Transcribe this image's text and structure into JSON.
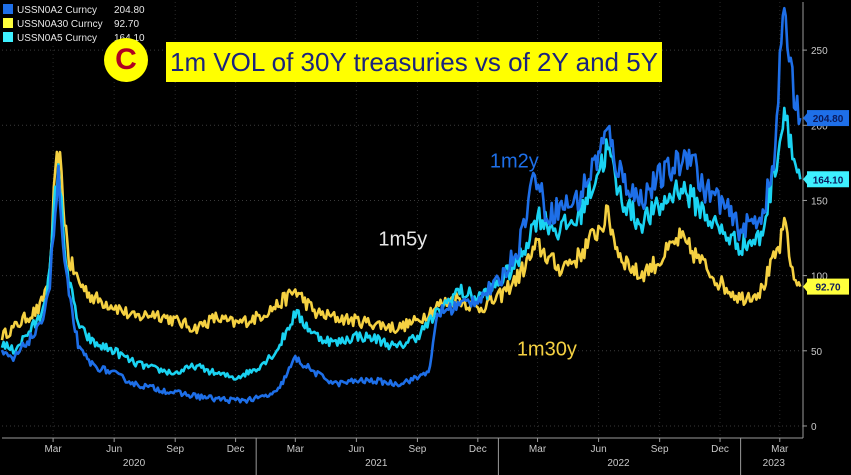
{
  "chart_data": {
    "type": "line",
    "title": "1m VOL of 30Y treasuries vs  of 2Y and 5Y",
    "panel_label": "C",
    "ylim": [
      -8,
      282
    ],
    "y_ticks": [
      0,
      50,
      100,
      150,
      200,
      250
    ],
    "x_start": "2019-12-15",
    "x_end": "2023-04-05",
    "month_ticks": [
      {
        "label": "Mar",
        "date": "2020-03-01"
      },
      {
        "label": "Jun",
        "date": "2020-06-01"
      },
      {
        "label": "Sep",
        "date": "2020-09-01"
      },
      {
        "label": "Dec",
        "date": "2020-12-01"
      },
      {
        "label": "Mar",
        "date": "2021-03-01"
      },
      {
        "label": "Jun",
        "date": "2021-06-01"
      },
      {
        "label": "Sep",
        "date": "2021-09-01"
      },
      {
        "label": "Dec",
        "date": "2021-12-01"
      },
      {
        "label": "Mar",
        "date": "2022-03-01"
      },
      {
        "label": "Jun",
        "date": "2022-06-01"
      },
      {
        "label": "Sep",
        "date": "2022-09-01"
      },
      {
        "label": "Dec",
        "date": "2022-12-01"
      },
      {
        "label": "Mar",
        "date": "2023-03-01"
      }
    ],
    "year_labels": [
      {
        "label": "2020",
        "date": "2020-07-01"
      },
      {
        "label": "2021",
        "date": "2021-07-01"
      },
      {
        "label": "2022",
        "date": "2022-07-01"
      },
      {
        "label": "2023",
        "date": "2023-02-20"
      }
    ],
    "year_separators": [
      "2021-01-01",
      "2022-01-01",
      "2023-01-01"
    ],
    "series": [
      {
        "name": "USSN0A2 Curncy",
        "last": "204.80",
        "color": "#1e6fe8",
        "label_bg": "#1e6fe8",
        "points": [
          [
            "2019-12-15",
            48
          ],
          [
            "2020-01-01",
            44
          ],
          [
            "2020-01-20",
            55
          ],
          [
            "2020-02-10",
            65
          ],
          [
            "2020-02-25",
            95
          ],
          [
            "2020-03-02",
            130
          ],
          [
            "2020-03-09",
            165
          ],
          [
            "2020-03-16",
            118
          ],
          [
            "2020-03-25",
            85
          ],
          [
            "2020-04-10",
            50
          ],
          [
            "2020-05-01",
            40
          ],
          [
            "2020-06-01",
            35
          ],
          [
            "2020-07-01",
            28
          ],
          [
            "2020-08-01",
            25
          ],
          [
            "2020-09-01",
            22
          ],
          [
            "2020-10-01",
            20
          ],
          [
            "2020-11-01",
            18
          ],
          [
            "2020-12-01",
            17
          ],
          [
            "2021-01-01",
            18
          ],
          [
            "2021-02-01",
            22
          ],
          [
            "2021-03-01",
            45
          ],
          [
            "2021-04-01",
            35
          ],
          [
            "2021-05-01",
            28
          ],
          [
            "2021-06-01",
            30
          ],
          [
            "2021-07-01",
            30
          ],
          [
            "2021-08-01",
            28
          ],
          [
            "2021-09-01",
            32
          ],
          [
            "2021-09-20",
            38
          ],
          [
            "2021-10-01",
            75
          ],
          [
            "2021-11-01",
            80
          ],
          [
            "2021-12-01",
            85
          ],
          [
            "2022-01-01",
            95
          ],
          [
            "2022-02-01",
            120
          ],
          [
            "2022-02-25",
            170
          ],
          [
            "2022-03-15",
            140
          ],
          [
            "2022-04-01",
            145
          ],
          [
            "2022-05-01",
            150
          ],
          [
            "2022-06-15",
            195
          ],
          [
            "2022-07-01",
            170
          ],
          [
            "2022-08-01",
            150
          ],
          [
            "2022-09-01",
            165
          ],
          [
            "2022-10-01",
            175
          ],
          [
            "2022-10-20",
            185
          ],
          [
            "2022-11-01",
            160
          ],
          [
            "2022-12-01",
            150
          ],
          [
            "2023-01-01",
            130
          ],
          [
            "2023-02-01",
            140
          ],
          [
            "2023-02-20",
            170
          ],
          [
            "2023-03-01",
            240
          ],
          [
            "2023-03-10",
            275
          ],
          [
            "2023-03-20",
            230
          ],
          [
            "2023-04-01",
            204.8
          ]
        ]
      },
      {
        "name": "USSN0A30 Curncy",
        "last": "92.70",
        "color": "#f5d142",
        "label_bg": "#ffff3c",
        "points": [
          [
            "2019-12-15",
            60
          ],
          [
            "2020-01-01",
            65
          ],
          [
            "2020-01-20",
            72
          ],
          [
            "2020-02-10",
            78
          ],
          [
            "2020-02-25",
            100
          ],
          [
            "2020-03-02",
            150
          ],
          [
            "2020-03-09",
            185
          ],
          [
            "2020-03-16",
            150
          ],
          [
            "2020-03-25",
            110
          ],
          [
            "2020-04-10",
            95
          ],
          [
            "2020-05-01",
            85
          ],
          [
            "2020-06-01",
            80
          ],
          [
            "2020-07-01",
            72
          ],
          [
            "2020-08-01",
            75
          ],
          [
            "2020-09-01",
            70
          ],
          [
            "2020-10-01",
            65
          ],
          [
            "2020-11-01",
            72
          ],
          [
            "2020-12-01",
            68
          ],
          [
            "2021-01-01",
            72
          ],
          [
            "2021-02-01",
            80
          ],
          [
            "2021-03-01",
            90
          ],
          [
            "2021-04-01",
            75
          ],
          [
            "2021-05-01",
            72
          ],
          [
            "2021-06-01",
            70
          ],
          [
            "2021-07-01",
            68
          ],
          [
            "2021-08-01",
            65
          ],
          [
            "2021-09-01",
            70
          ],
          [
            "2021-10-01",
            80
          ],
          [
            "2021-11-01",
            85
          ],
          [
            "2021-12-01",
            78
          ],
          [
            "2022-01-01",
            85
          ],
          [
            "2022-02-01",
            100
          ],
          [
            "2022-03-01",
            120
          ],
          [
            "2022-04-01",
            105
          ],
          [
            "2022-05-01",
            112
          ],
          [
            "2022-06-15",
            140
          ],
          [
            "2022-07-01",
            115
          ],
          [
            "2022-08-01",
            100
          ],
          [
            "2022-09-01",
            110
          ],
          [
            "2022-10-01",
            125
          ],
          [
            "2022-11-01",
            110
          ],
          [
            "2022-12-01",
            95
          ],
          [
            "2023-01-01",
            85
          ],
          [
            "2023-02-01",
            90
          ],
          [
            "2023-03-01",
            120
          ],
          [
            "2023-03-10",
            135
          ],
          [
            "2023-03-20",
            100
          ],
          [
            "2023-04-01",
            92.7
          ]
        ]
      },
      {
        "name": "USSN0A5 Curncy",
        "last": "164.10",
        "color": "#1ad3f2",
        "label_bg": "#3ef0ff",
        "points": [
          [
            "2019-12-15",
            55
          ],
          [
            "2020-01-01",
            50
          ],
          [
            "2020-01-20",
            60
          ],
          [
            "2020-02-10",
            72
          ],
          [
            "2020-02-25",
            100
          ],
          [
            "2020-03-02",
            140
          ],
          [
            "2020-03-09",
            175
          ],
          [
            "2020-03-16",
            130
          ],
          [
            "2020-03-25",
            95
          ],
          [
            "2020-04-10",
            65
          ],
          [
            "2020-05-01",
            55
          ],
          [
            "2020-06-01",
            50
          ],
          [
            "2020-07-01",
            42
          ],
          [
            "2020-08-01",
            38
          ],
          [
            "2020-09-01",
            35
          ],
          [
            "2020-10-01",
            40
          ],
          [
            "2020-11-01",
            35
          ],
          [
            "2020-12-01",
            32
          ],
          [
            "2021-01-01",
            38
          ],
          [
            "2021-02-01",
            50
          ],
          [
            "2021-03-01",
            75
          ],
          [
            "2021-04-01",
            60
          ],
          [
            "2021-05-01",
            55
          ],
          [
            "2021-06-01",
            60
          ],
          [
            "2021-07-01",
            58
          ],
          [
            "2021-08-01",
            52
          ],
          [
            "2021-09-01",
            60
          ],
          [
            "2021-10-01",
            75
          ],
          [
            "2021-11-01",
            90
          ],
          [
            "2021-12-01",
            85
          ],
          [
            "2022-01-01",
            95
          ],
          [
            "2022-02-01",
            110
          ],
          [
            "2022-03-01",
            140
          ],
          [
            "2022-04-01",
            130
          ],
          [
            "2022-05-01",
            138
          ],
          [
            "2022-06-15",
            185
          ],
          [
            "2022-07-01",
            155
          ],
          [
            "2022-08-01",
            135
          ],
          [
            "2022-09-01",
            145
          ],
          [
            "2022-10-01",
            160
          ],
          [
            "2022-11-01",
            145
          ],
          [
            "2022-12-01",
            130
          ],
          [
            "2023-01-01",
            120
          ],
          [
            "2023-02-01",
            125
          ],
          [
            "2023-03-01",
            190
          ],
          [
            "2023-03-10",
            215
          ],
          [
            "2023-03-20",
            180
          ],
          [
            "2023-04-01",
            164.1
          ]
        ]
      }
    ],
    "annotations": [
      {
        "text": "1m2y",
        "color": "#1e6fe8",
        "x": "2022-01-25",
        "y": 172
      },
      {
        "text": "1m5y",
        "color": "#e8e8e8",
        "x": "2021-08-10",
        "y": 120
      },
      {
        "text": "1m30y",
        "color": "#f5d142",
        "x": "2022-03-15",
        "y": 47
      }
    ]
  }
}
